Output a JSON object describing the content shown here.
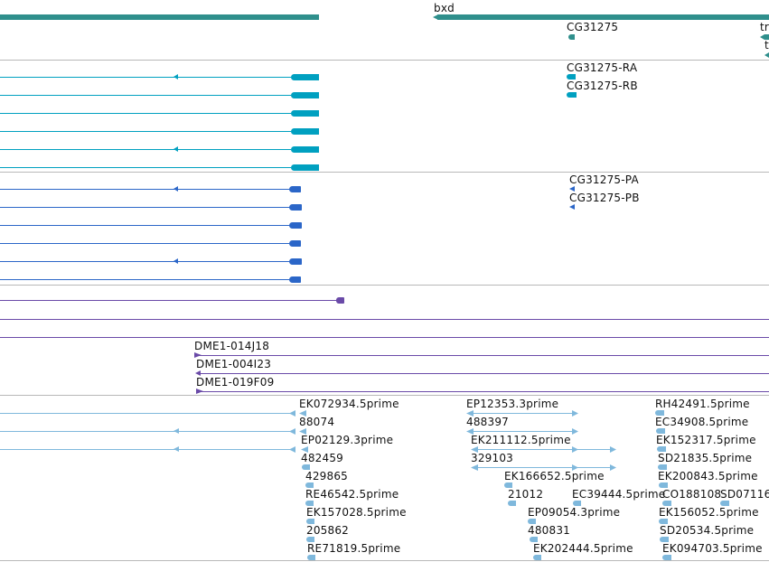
{
  "colors": {
    "gene": "#2f8f8c",
    "transcript_ra": "#00a0c0",
    "transcript_pa": "#2b66c8",
    "clone": "#6a4aa8",
    "est": "#7fb8dc",
    "separator": "#b8b8b8",
    "text": "#111111"
  },
  "tracks": {
    "genes": {
      "labels": [
        "bxd",
        "CG31275",
        "tr",
        "t"
      ]
    },
    "transcripts_r": {
      "labels": [
        "CG31275-RA",
        "CG31275-RB"
      ]
    },
    "transcripts_p": {
      "labels": [
        "CG31275-PA",
        "CG31275-PB"
      ]
    },
    "clones": {
      "labels": [
        "DME1-014J18",
        "DME1-004I23",
        "DME1-019F09"
      ]
    },
    "ests": {
      "labels": [
        "EK072934.5prime",
        "88074",
        "EP02129.3prime",
        "482459",
        "429865",
        "RE46542.5prime",
        "EK157028.5prime",
        "205862",
        "RE71819.5prime",
        "EP12353.3prime",
        "488397",
        "EK211112.5prime",
        "329103",
        "EK166652.5prime",
        "21012",
        "EC39444.5prime",
        "EP09054.3prime",
        "480831",
        "EK202444.5prime",
        "RH42491.5prime",
        "EC34908.5prime",
        "EK152317.5prime",
        "SD21835.5prime",
        "EK200843.5prime",
        "CO188108",
        "SD07116",
        "EK156052.5prime",
        "SD20534.5prime",
        "EK094703.5prime"
      ]
    }
  }
}
